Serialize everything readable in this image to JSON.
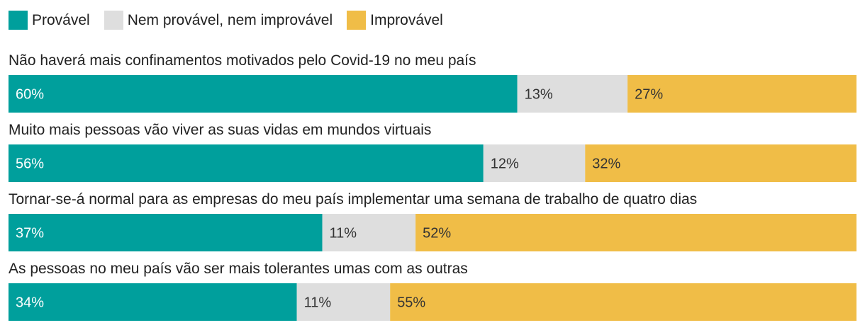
{
  "chart_data": {
    "type": "bar",
    "orientation": "horizontal",
    "stacked": true,
    "normalized_100": true,
    "legend_position": "top-left",
    "grid": false,
    "categories": [
      "Não haverá mais confinamentos motivados pelo Covid-19 no meu país",
      "Muito mais pessoas vão viver as suas vidas em mundos virtuais",
      "Tornar-se-á normal para as empresas do meu país implementar uma semana de trabalho de quatro dias",
      "As pessoas no meu país vão ser mais tolerantes umas com as outras"
    ],
    "series": [
      {
        "name": "Provável",
        "color": "#009f9c",
        "text_color": "#ffffff",
        "values": [
          60,
          56,
          37,
          34
        ],
        "labels": [
          "60%",
          "56%",
          "37%",
          "34%"
        ]
      },
      {
        "name": "Nem provável, nem improvável",
        "color": "#dedede",
        "text_color": "#333333",
        "values": [
          13,
          12,
          11,
          11
        ],
        "labels": [
          "13%",
          "12%",
          "11%",
          "11%"
        ]
      },
      {
        "name": "Improvável",
        "color": "#f0bd47",
        "text_color": "#333333",
        "values": [
          27,
          32,
          52,
          55
        ],
        "labels": [
          "27%",
          "32%",
          "52%",
          "55%"
        ]
      }
    ]
  }
}
